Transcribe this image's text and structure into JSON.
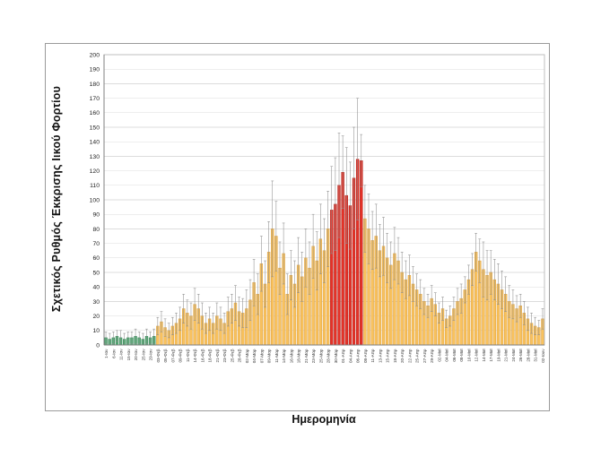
{
  "chart": {
    "ylabel": "Σχετικός Ρυθμός Έκκρισης Ιικού Φορτίου",
    "xlabel": "Ημερομηνία"
  },
  "chart_data": {
    "type": "bar",
    "title": "",
    "ylabel": "Σχετικός Ρυθμός Έκκρισης Ιικού Φορτίου",
    "xlabel": "Ημερομηνία",
    "ylim": [
      0,
      200
    ],
    "ytick_step": 10,
    "yticks": [
      0,
      10,
      20,
      30,
      40,
      50,
      60,
      70,
      80,
      90,
      100,
      110,
      120,
      130,
      140,
      150,
      160,
      170,
      180,
      190,
      200
    ],
    "grid": true,
    "legend": "none",
    "bars_per_label": 2,
    "x_tick_labels": [
      "1-Ιαν",
      "6-Ιαν",
      "11-Ιαν",
      "15-Ιαν",
      "20-Ιαν",
      "25-Ιαν",
      "29-Ιαν",
      "03-Φεβ",
      "05-Φεβ",
      "07-Φεβ",
      "09-Φεβ",
      "11-Φεβ",
      "14-Φεβ",
      "16-Φεβ",
      "18-Φεβ",
      "21-Φεβ",
      "23-Φεβ",
      "25-Φεβ",
      "28-Φεβ",
      "02-Μαρ",
      "04-Μαρ",
      "07-Μαρ",
      "09-Μαρ",
      "11-Μαρ",
      "14-Μαρ",
      "16-Μαρ",
      "18-Μαρ",
      "21-Μαρ",
      "23-Μαρ",
      "25-Μαρ",
      "28-Μαρ",
      "30-Μαρ",
      "01-Απρ",
      "04-Απρ",
      "06-Απρ",
      "08-Απρ",
      "11-Απρ",
      "13-Απρ",
      "15-Απρ",
      "18-Απρ",
      "20-Απρ",
      "22-Απρ",
      "25-Απρ",
      "27-Απρ",
      "29-Απρ",
      "02-Μαϊ",
      "04-Μαϊ",
      "06-Μαϊ",
      "08-Μαϊ",
      "10-Μαϊ",
      "12-Μαϊ",
      "14-Μαϊ",
      "17-Μαϊ",
      "19-Μαϊ",
      "21-Μαϊ",
      "24-Μαϊ",
      "26-Μαϊ",
      "28-Μαϊ",
      "31-Μαϊ",
      "02-Ιουν"
    ],
    "series": [
      {
        "name": "Σχετικός Ρυθμός Έκκρισης Ιικού Φορτίου",
        "values": [
          5,
          4,
          5,
          6,
          5,
          4,
          5,
          5,
          6,
          5,
          4,
          6,
          5,
          6,
          13,
          16,
          12,
          10,
          13,
          15,
          18,
          25,
          22,
          20,
          28,
          25,
          20,
          15,
          18,
          15,
          20,
          18,
          15,
          23,
          25,
          29,
          23,
          22,
          25,
          31,
          43,
          35,
          56,
          42,
          64,
          80,
          75,
          53,
          63,
          35,
          48,
          42,
          55,
          47,
          60,
          53,
          68,
          58,
          73,
          65,
          80,
          93,
          97,
          110,
          119,
          103,
          96,
          115,
          128,
          127,
          87,
          80,
          72,
          75,
          65,
          68,
          60,
          55,
          63,
          58,
          50,
          45,
          48,
          42,
          38,
          35,
          30,
          27,
          32,
          28,
          22,
          25,
          18,
          20,
          25,
          30,
          32,
          38,
          45,
          52,
          64,
          58,
          52,
          48,
          50,
          45,
          42,
          38,
          35,
          30,
          28,
          25,
          27,
          22,
          18,
          15,
          13,
          12,
          18
        ],
        "error_plus": [
          4,
          4,
          4,
          4,
          5,
          4,
          4,
          4,
          5,
          4,
          4,
          5,
          4,
          5,
          6,
          7,
          6,
          5,
          6,
          7,
          8,
          10,
          9,
          9,
          11,
          10,
          9,
          7,
          8,
          7,
          9,
          8,
          7,
          10,
          10,
          12,
          10,
          10,
          13,
          14,
          16,
          14,
          19,
          16,
          21,
          33,
          24,
          18,
          21,
          14,
          17,
          16,
          19,
          17,
          20,
          18,
          22,
          20,
          24,
          22,
          26,
          30,
          32,
          36,
          25,
          33,
          30,
          35,
          42,
          18,
          23,
          24,
          20,
          22,
          18,
          20,
          17,
          16,
          18,
          16,
          14,
          13,
          14,
          12,
          11,
          10,
          9,
          8,
          9,
          8,
          7,
          8,
          6,
          7,
          8,
          9,
          10,
          9,
          10,
          11,
          13,
          15,
          19,
          17,
          15,
          14,
          14,
          13,
          12,
          11,
          10,
          9,
          8,
          8,
          8,
          7,
          6,
          5,
          7
        ]
      }
    ],
    "segments": [
      {
        "start_index": 0,
        "end_index": 13,
        "color_key": "green"
      },
      {
        "start_index": 14,
        "end_index": 60,
        "color_key": "orange"
      },
      {
        "start_index": 61,
        "end_index": 69,
        "color_key": "red"
      },
      {
        "start_index": 70,
        "end_index": 118,
        "color_key": "orange"
      }
    ],
    "colors": {
      "green_fill": "#53AD74",
      "green_stroke": "#2F7E50",
      "orange_fill": "#F9C25D",
      "orange_stroke": "#D89B3C",
      "red_fill": "#E53228",
      "red_stroke": "#A61F17",
      "error_bar": "#8C8C8C",
      "gridline": "#DCDCDC",
      "axis_line": "#7F7F7F",
      "plot_border": "#BFBFBF",
      "frame_border": "#9A9A9A",
      "tick_text": "#333333"
    }
  }
}
